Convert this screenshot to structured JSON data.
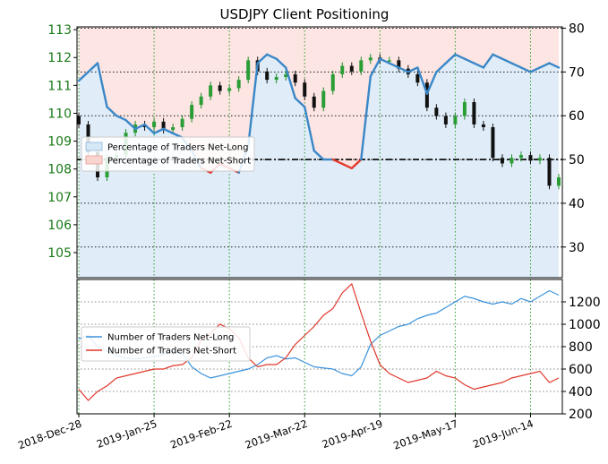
{
  "chart_data": [
    {
      "panel": "top",
      "type": "line",
      "title": "USDJPY Client Positioning",
      "x": [
        "2018-Dec-28",
        "2019-Jan-01",
        "2019-Jan-04",
        "2019-Jan-08",
        "2019-Jan-11",
        "2019-Jan-15",
        "2019-Jan-18",
        "2019-Jan-22",
        "2019-Jan-25",
        "2019-Jan-29",
        "2019-Feb-01",
        "2019-Feb-05",
        "2019-Feb-08",
        "2019-Feb-12",
        "2019-Feb-15",
        "2019-Feb-19",
        "2019-Feb-22",
        "2019-Feb-26",
        "2019-Mar-01",
        "2019-Mar-05",
        "2019-Mar-08",
        "2019-Mar-12",
        "2019-Mar-15",
        "2019-Mar-19",
        "2019-Mar-22",
        "2019-Mar-26",
        "2019-Mar-29",
        "2019-Apr-02",
        "2019-Apr-05",
        "2019-Apr-09",
        "2019-Apr-12",
        "2019-Apr-16",
        "2019-Apr-19",
        "2019-Apr-23",
        "2019-Apr-26",
        "2019-Apr-30",
        "2019-May-03",
        "2019-May-07",
        "2019-May-10",
        "2019-May-14",
        "2019-May-17",
        "2019-May-21",
        "2019-May-24",
        "2019-May-28",
        "2019-May-31",
        "2019-Jun-04",
        "2019-Jun-07",
        "2019-Jun-11",
        "2019-Jun-14",
        "2019-Jun-18",
        "2019-Jun-21",
        "2019-Jun-25"
      ],
      "x_ticks": [
        "2018-Dec-28",
        "2019-Jan-25",
        "2019-Feb-22",
        "2019-Mar-22",
        "2019-Apr-19",
        "2019-May-17",
        "2019-Jun-14"
      ],
      "left_axis": {
        "ticks": [
          105,
          106,
          107,
          108,
          109,
          110,
          111,
          112,
          113
        ],
        "ylim": [
          104.1,
          113.1
        ]
      },
      "right_axis": {
        "ticks": [
          30,
          40,
          50,
          60,
          70,
          80
        ],
        "ylim": [
          23,
          80.3
        ]
      },
      "series": [
        {
          "name": "Percentage of Traders Net-Long",
          "axis": "right",
          "color": "#3a87c8",
          "values": [
            68,
            70,
            72,
            62,
            60,
            59,
            57,
            58,
            56,
            57,
            56,
            55,
            52,
            48,
            47,
            49,
            48,
            47,
            53,
            72,
            74,
            73,
            71,
            64,
            62,
            52,
            50,
            50,
            49,
            48,
            50,
            69,
            73,
            72,
            71,
            70,
            71,
            65,
            70,
            72,
            74,
            73,
            72,
            71,
            74,
            73,
            72,
            71,
            70,
            71,
            72,
            71
          ]
        },
        {
          "name": "Percentage of Traders Net-Short",
          "axis": "right",
          "color": "#e23b2e",
          "values": [
            32,
            30,
            28,
            38,
            40,
            41,
            43,
            42,
            44,
            43,
            44,
            45,
            48,
            52,
            53,
            51,
            52,
            53,
            47,
            28,
            26,
            27,
            29,
            36,
            38,
            48,
            50,
            50,
            51,
            52,
            50,
            31,
            27,
            28,
            29,
            30,
            29,
            35,
            30,
            28,
            26,
            27,
            28,
            29,
            26,
            27,
            28,
            29,
            30,
            29,
            28,
            29
          ]
        },
        {
          "name": "USDJPY",
          "axis": "left",
          "type": "candlestick-close",
          "color": "#000000",
          "values": [
            109.6,
            108.6,
            107.7,
            108.4,
            108.5,
            109.3,
            109.6,
            109.5,
            109.7,
            109.4,
            109.5,
            109.8,
            110.3,
            110.6,
            111.0,
            110.8,
            110.9,
            111.2,
            111.9,
            111.5,
            111.2,
            111.3,
            111.4,
            111.1,
            110.6,
            110.2,
            110.8,
            111.4,
            111.7,
            111.5,
            111.9,
            112.0,
            111.9,
            111.9,
            111.6,
            111.4,
            111.1,
            110.2,
            109.9,
            109.6,
            109.9,
            110.4,
            109.6,
            109.5,
            108.4,
            108.2,
            108.4,
            108.5,
            108.3,
            108.4,
            107.4,
            107.7
          ]
        }
      ],
      "reference_line": {
        "axis": "right",
        "value": 50
      },
      "legend": {
        "position": "left"
      }
    },
    {
      "panel": "bottom",
      "type": "line",
      "x_ticks": [
        "2018-Dec-28",
        "2019-Jan-25",
        "2019-Feb-22",
        "2019-Mar-22",
        "2019-Apr-19",
        "2019-May-17",
        "2019-Jun-14"
      ],
      "y_axis": {
        "ticks": [
          200,
          400,
          600,
          800,
          1000,
          1200
        ],
        "ylim": [
          200,
          1400
        ]
      },
      "series": [
        {
          "name": "Number of Traders Net-Long",
          "color": "#3a92dc",
          "values": [
            870,
            900,
            800,
            760,
            720,
            700,
            690,
            700,
            710,
            730,
            760,
            740,
            620,
            560,
            520,
            540,
            560,
            580,
            600,
            640,
            700,
            720,
            690,
            700,
            660,
            620,
            610,
            600,
            560,
            540,
            620,
            820,
            900,
            940,
            980,
            1000,
            1050,
            1080,
            1100,
            1150,
            1200,
            1250,
            1230,
            1200,
            1180,
            1200,
            1180,
            1230,
            1200,
            1250,
            1300,
            1260
          ]
        },
        {
          "name": "Number of Traders Net-Short",
          "color": "#e0372b",
          "values": [
            420,
            320,
            400,
            450,
            520,
            540,
            560,
            580,
            600,
            600,
            630,
            640,
            700,
            860,
            920,
            1000,
            960,
            880,
            700,
            620,
            640,
            640,
            700,
            820,
            900,
            980,
            1080,
            1140,
            1280,
            1360,
            1100,
            850,
            640,
            560,
            520,
            480,
            500,
            520,
            580,
            540,
            520,
            460,
            420,
            440,
            460,
            480,
            520,
            540,
            560,
            580,
            480,
            520
          ]
        }
      ],
      "legend": {
        "position": "left"
      }
    }
  ],
  "colors": {
    "net_long_fill": "#d6e7f5",
    "net_short_fill": "#fad4cf",
    "left_tick_color": "#1a7a1a"
  }
}
